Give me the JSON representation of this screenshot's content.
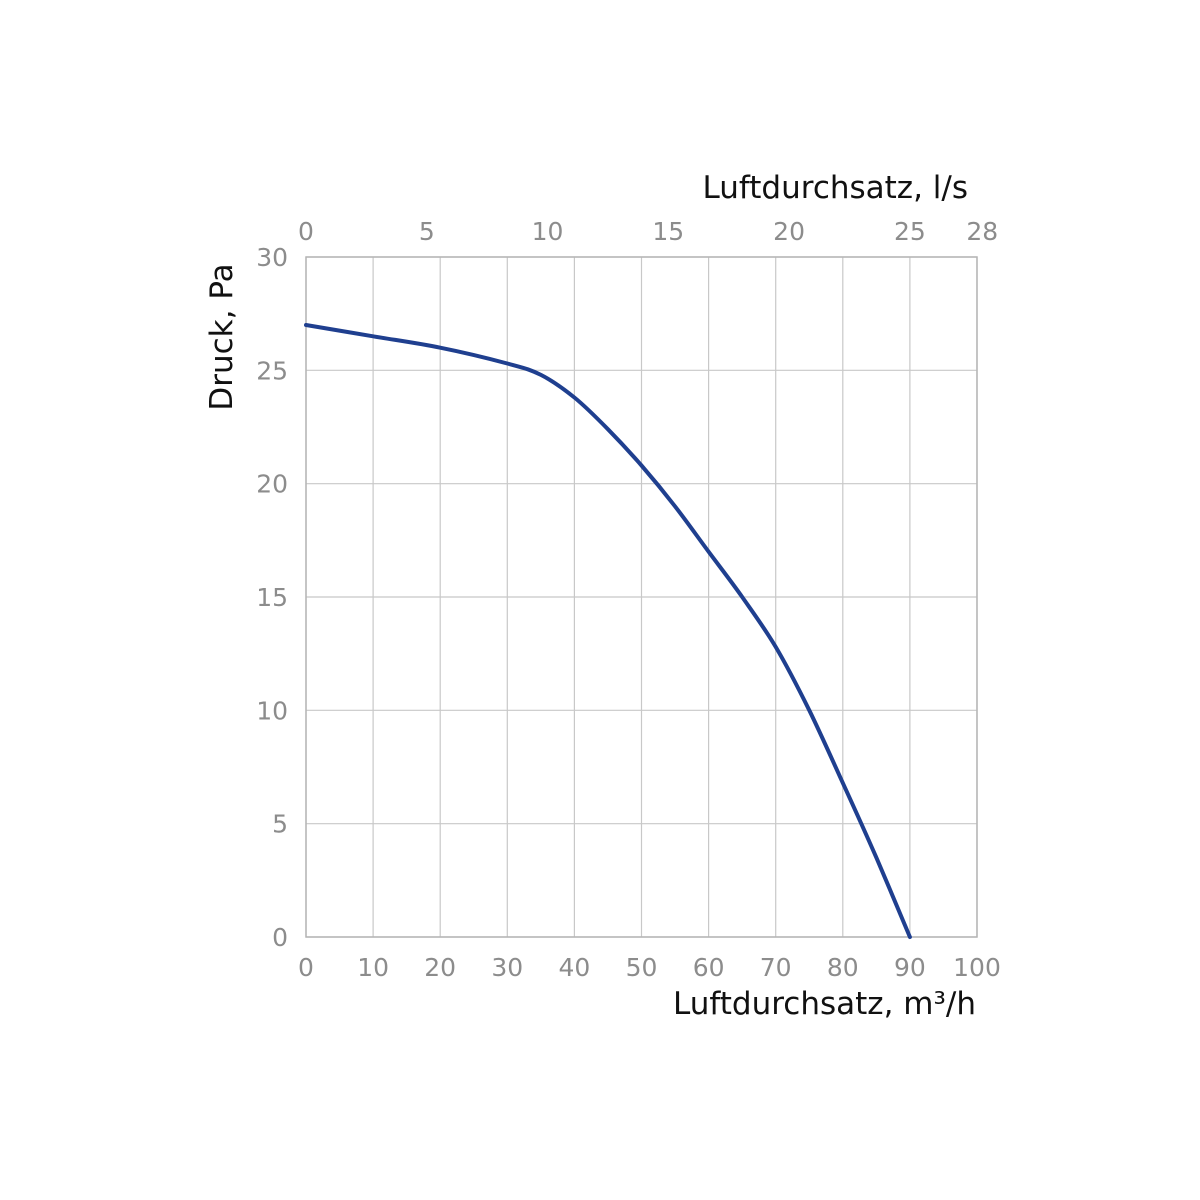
{
  "chart_data": {
    "type": "line",
    "xlabel": "Luftdurchsatz, m³/h",
    "ylabel": "Druck, Pa",
    "x2label": "Luftdurchsatz, l/s",
    "xlim": [
      0,
      100
    ],
    "ylim": [
      0,
      30
    ],
    "x2lim": [
      0,
      27.78
    ],
    "xticks": [
      0,
      10,
      20,
      30,
      40,
      50,
      60,
      70,
      80,
      90,
      100
    ],
    "yticks": [
      0,
      5,
      10,
      15,
      20,
      25,
      30
    ],
    "x2ticks": [
      0,
      5,
      10,
      15,
      20,
      25,
      28
    ],
    "grid": true,
    "colors": {
      "curve": "#1f3f8f"
    },
    "series": [
      {
        "x": [
          0,
          10,
          20,
          30,
          35,
          40,
          45,
          50,
          55,
          60,
          65,
          70,
          75,
          80,
          85,
          90
        ],
        "y": [
          27,
          26.5,
          26.0,
          25.3,
          24.8,
          23.8,
          22.4,
          20.8,
          19.0,
          17.0,
          15.0,
          12.8,
          10.0,
          6.8,
          3.5,
          0
        ]
      }
    ]
  }
}
